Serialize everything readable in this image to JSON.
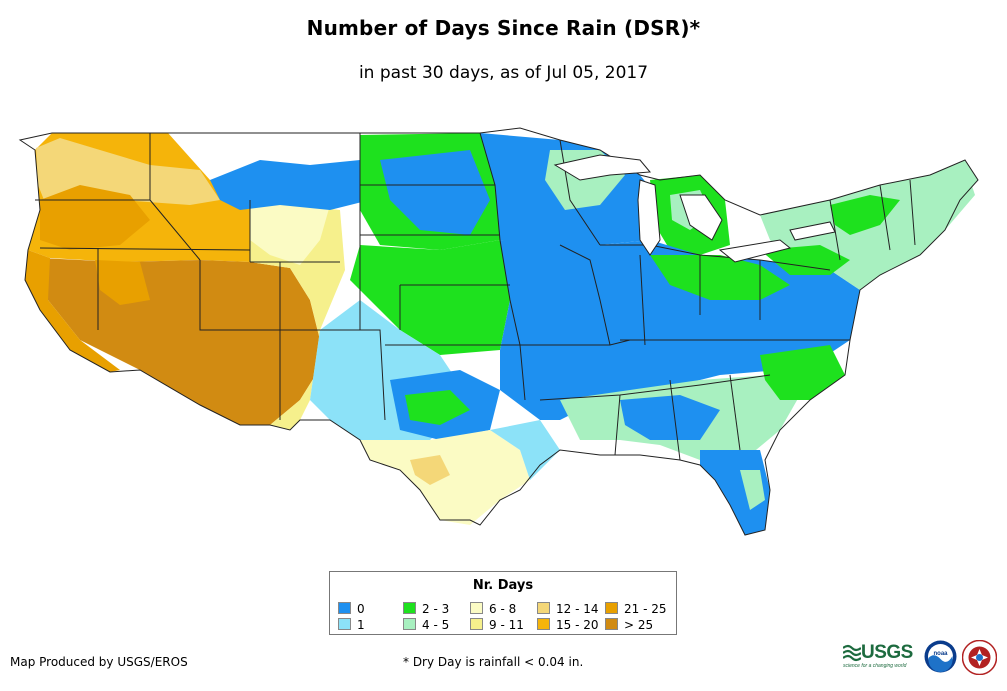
{
  "header": {
    "title": "Number of Days Since Rain (DSR)*",
    "subtitle": "in past 30 days, as of Jul 05, 2017"
  },
  "legend": {
    "title": "Nr. Days",
    "items": [
      {
        "label": "0",
        "color": "#1e90f0"
      },
      {
        "label": "1",
        "color": "#8ce2f8"
      },
      {
        "label": "2 - 3",
        "color": "#1ee11e"
      },
      {
        "label": "4 - 5",
        "color": "#a8f0c0"
      },
      {
        "label": "6 - 8",
        "color": "#fbfbc4"
      },
      {
        "label": "9 - 11",
        "color": "#f6f08c"
      },
      {
        "label": "12 - 14",
        "color": "#f4d778"
      },
      {
        "label": "15 - 20",
        "color": "#f5b40a"
      },
      {
        "label": "21 - 25",
        "color": "#e8a000"
      },
      {
        "label": "> 25",
        "color": "#d18b12"
      }
    ]
  },
  "footer": {
    "credit": "Map Produced by USGS/EROS",
    "footnote": "* Dry Day is rainfall < 0.04 in."
  },
  "logos": {
    "usgs": "USGS",
    "usgs_tagline": "science for a changing world",
    "noaa": "noaa",
    "nws": "NATIONAL WEATHER SERVICE"
  },
  "map": {
    "icons": [
      "usgs-logo-icon",
      "noaa-logo-icon",
      "nws-logo-icon"
    ]
  }
}
